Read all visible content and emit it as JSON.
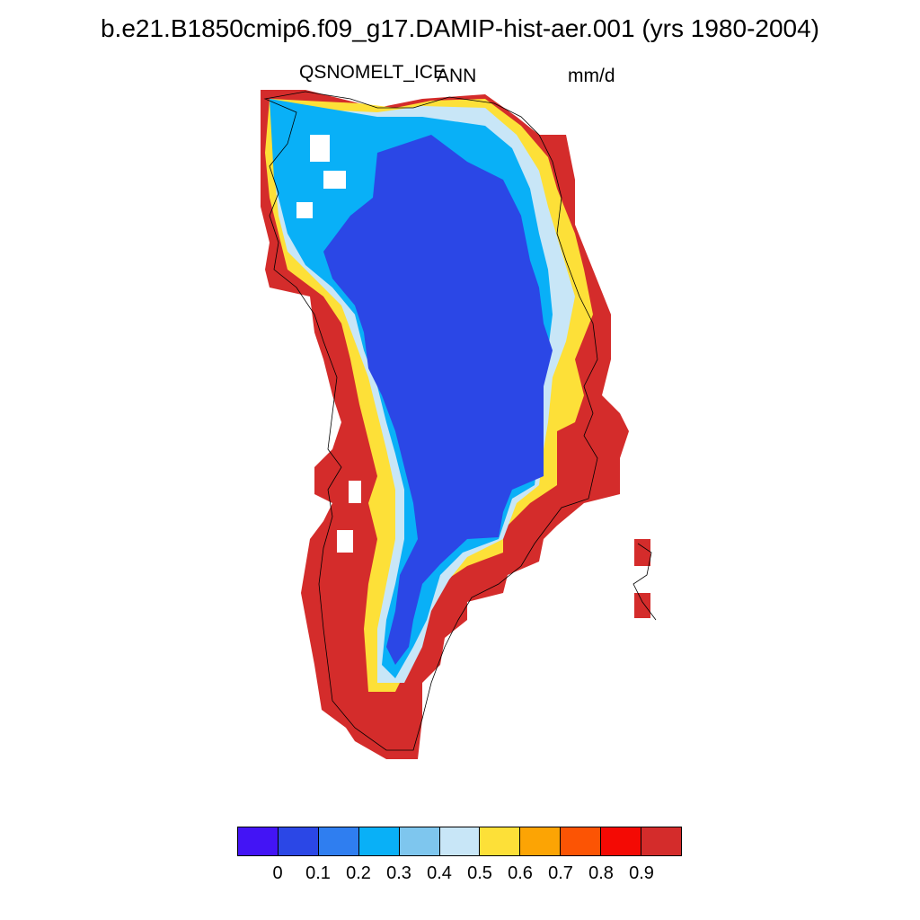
{
  "title": "b.e21.B1850cmip6.f09_g17.DAMIP-hist-aer.001 (yrs 1980-2004)",
  "left_label": "QSNOMELT_ICE",
  "center_label": "ANN",
  "right_label": "mm/d",
  "colorbar": {
    "colors": [
      "#4314f5",
      "#2b47e6",
      "#2f7ef0",
      "#09b0f7",
      "#7ec6ee",
      "#c8e6f7",
      "#fde038",
      "#fca404",
      "#fc5404",
      "#f40a04",
      "#d42c2b"
    ],
    "tick_labels": [
      "0",
      "0.1",
      "0.2",
      "0.3",
      "0.4",
      "0.5",
      "0.6",
      "0.7",
      "0.8",
      "0.9"
    ]
  },
  "map": {
    "region": "Greenland",
    "interior_color_index": 1,
    "coast_color_index": 10
  }
}
